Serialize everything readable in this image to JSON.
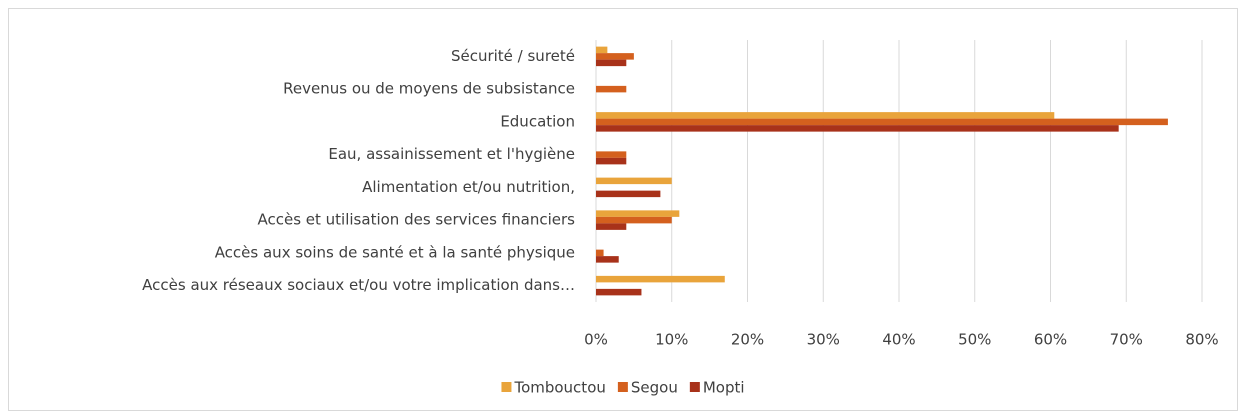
{
  "chart_data": {
    "type": "bar",
    "orientation": "horizontal",
    "categories": [
      "Sécurité / sureté",
      "Revenus ou de moyens de subsistance",
      "Education",
      "Eau, assainissement et l'hygiène",
      "Alimentation et/ou nutrition,",
      "Accès et utilisation des services financiers",
      "Accès aux soins de santé et à la santé physique",
      "Accès aux réseaux sociaux  et/ou votre implication dans…"
    ],
    "series": [
      {
        "name": "Tombouctou",
        "color": "#e9a43b",
        "values": [
          1.5,
          0,
          60.5,
          0,
          10,
          11,
          0,
          17
        ]
      },
      {
        "name": "Segou",
        "color": "#d4601e",
        "values": [
          5,
          4,
          75.5,
          4,
          0,
          10,
          1,
          0
        ]
      },
      {
        "name": "Mopti",
        "color": "#a8321a",
        "values": [
          4,
          0,
          69,
          4,
          8.5,
          4,
          3,
          6
        ]
      }
    ],
    "xlim": [
      0,
      80
    ],
    "xticks": [
      {
        "value": 0,
        "label": "0%"
      },
      {
        "value": 10,
        "label": "10%"
      },
      {
        "value": 20,
        "label": "20%"
      },
      {
        "value": 30,
        "label": "30%"
      },
      {
        "value": 40,
        "label": "40%"
      },
      {
        "value": 50,
        "label": "50%"
      },
      {
        "value": 60,
        "label": "60%"
      },
      {
        "value": 70,
        "label": "70%"
      },
      {
        "value": 80,
        "label": "80%"
      }
    ],
    "grid": true,
    "legend": "bottom"
  }
}
